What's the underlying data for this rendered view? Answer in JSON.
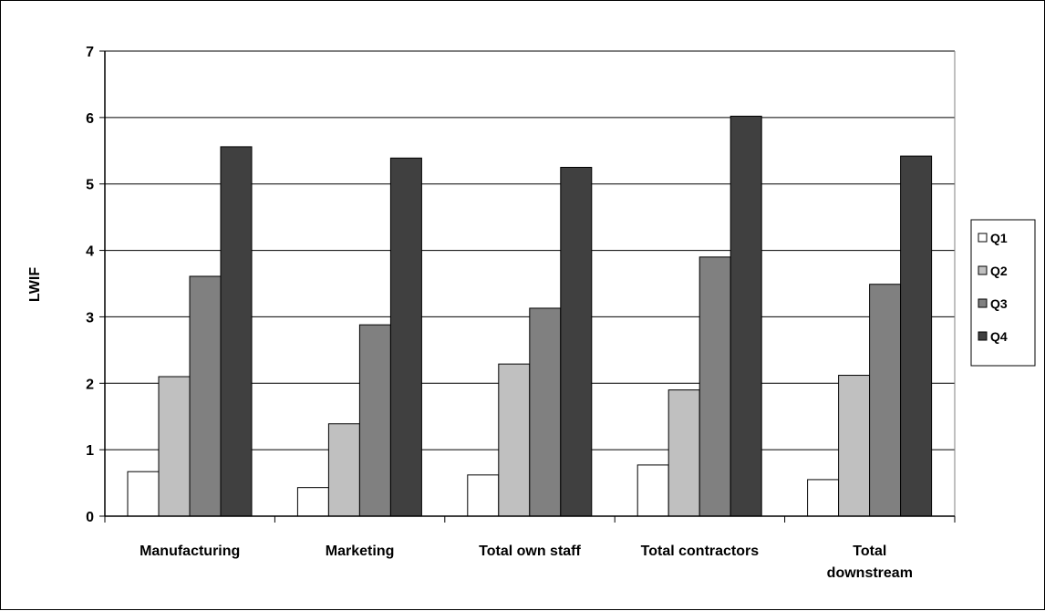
{
  "chart_data": {
    "type": "bar",
    "title": "",
    "xlabel": "",
    "ylabel": "LWIF",
    "ylim": [
      0,
      7
    ],
    "yticks": [
      "0",
      "1",
      "2",
      "3",
      "4",
      "5",
      "6",
      "7"
    ],
    "grid": true,
    "legend_position": "right",
    "categories": [
      [
        "Manufacturing"
      ],
      [
        "Marketing"
      ],
      [
        "Total own staff"
      ],
      [
        "Total contractors"
      ],
      [
        "Total",
        "downstream"
      ]
    ],
    "series": [
      {
        "name": "Q1",
        "color": "#ffffff",
        "values": [
          0.67,
          0.43,
          0.62,
          0.77,
          0.55
        ]
      },
      {
        "name": "Q2",
        "color": "#c0c0c0",
        "values": [
          2.1,
          1.39,
          2.29,
          1.9,
          2.12
        ]
      },
      {
        "name": "Q3",
        "color": "#808080",
        "values": [
          3.61,
          2.88,
          3.13,
          3.9,
          3.49
        ]
      },
      {
        "name": "Q4",
        "color": "#404040",
        "values": [
          5.56,
          5.39,
          5.25,
          6.02,
          5.42
        ]
      }
    ]
  }
}
